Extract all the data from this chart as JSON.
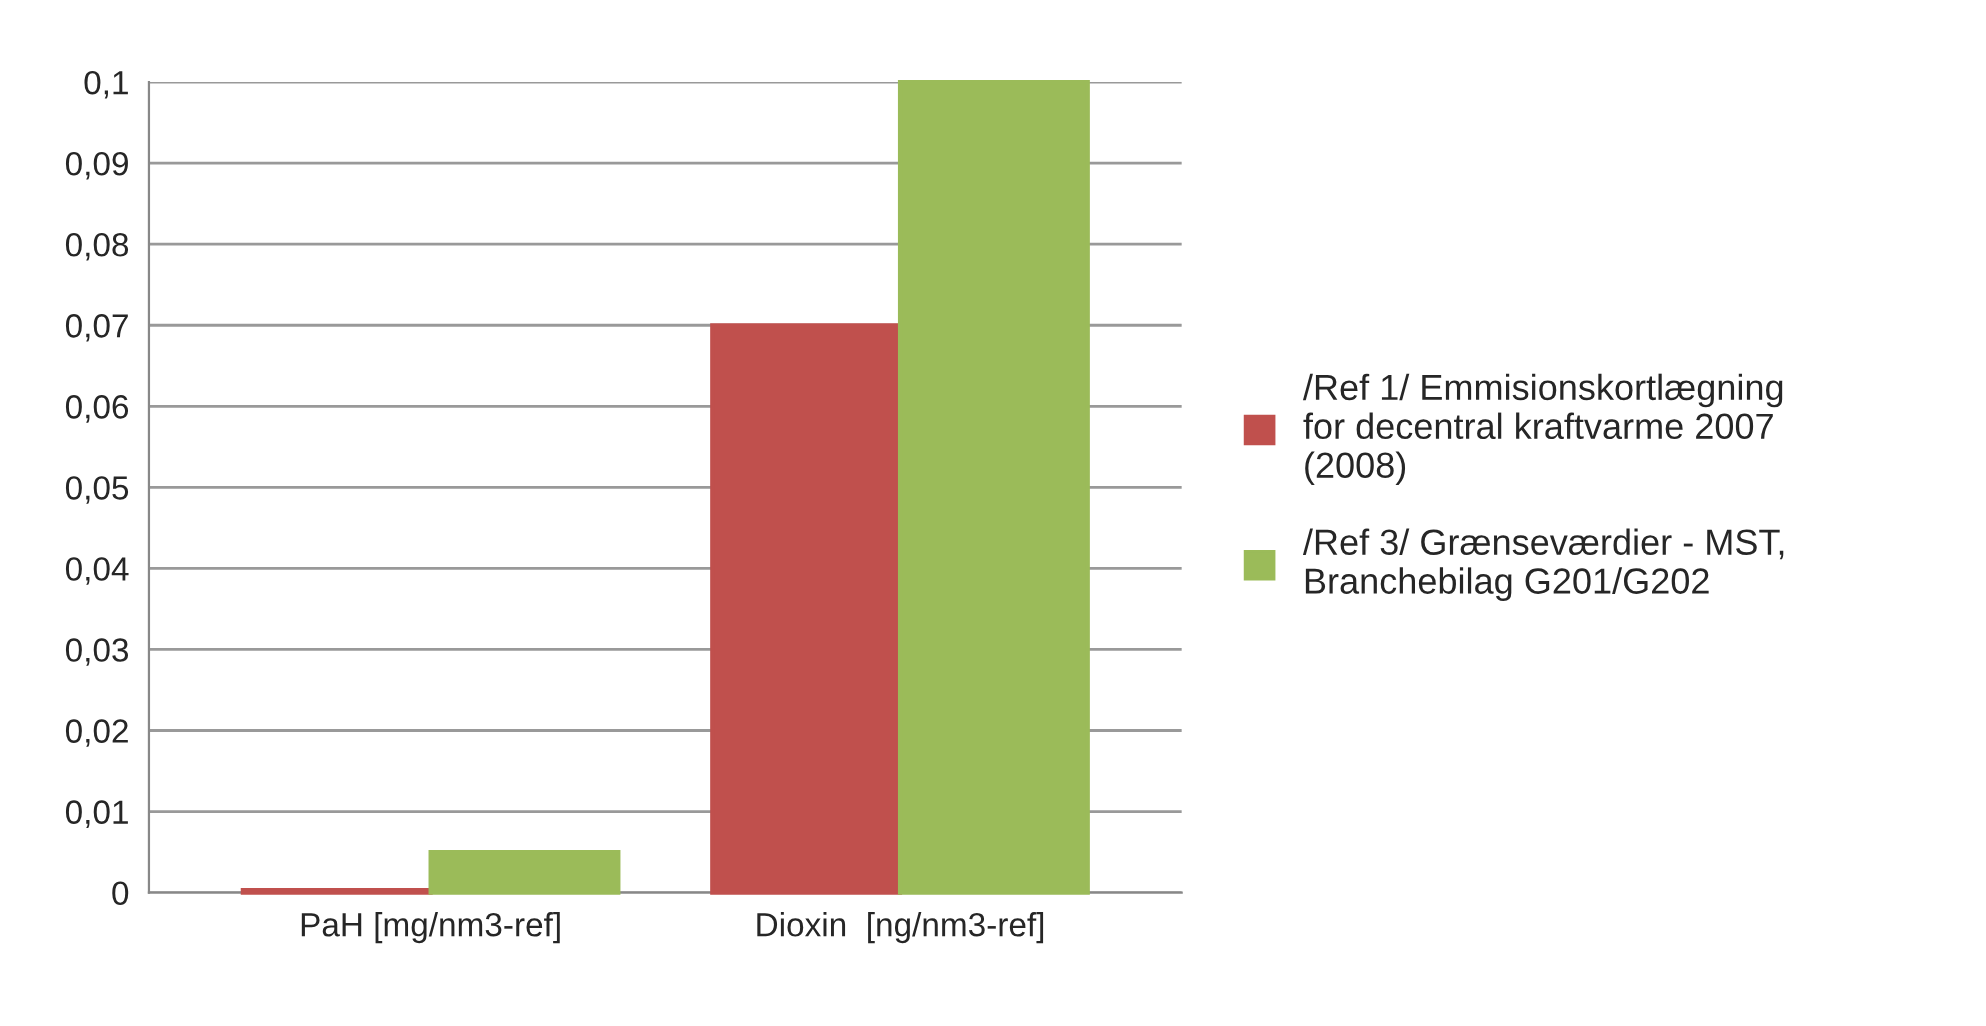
{
  "chart_data": {
    "type": "bar",
    "categories": [
      "PaH [mg/nm3-ref]",
      "Dioxin  [ng/nm3-ref]"
    ],
    "series": [
      {
        "name": "/Ref 1/ Emmisionskortlægning\nfor decentral kraftvarme 2007\n(2008)",
        "color": "#c0504d",
        "values": [
          0.0003,
          0.07
        ]
      },
      {
        "name": "/Ref 3/ Grænseværdier - MST,\nBranchebilag G201/G202",
        "color": "#9bbb59",
        "values": [
          0.005,
          0.1
        ]
      }
    ],
    "ylim": [
      0,
      0.1
    ],
    "yticks": [
      {
        "value": 0,
        "label": "0"
      },
      {
        "value": 0.01,
        "label": "0,01"
      },
      {
        "value": 0.02,
        "label": "0,02"
      },
      {
        "value": 0.03,
        "label": "0,03"
      },
      {
        "value": 0.04,
        "label": "0,04"
      },
      {
        "value": 0.05,
        "label": "0,05"
      },
      {
        "value": 0.06,
        "label": "0,06"
      },
      {
        "value": 0.07,
        "label": "0,07"
      },
      {
        "value": 0.08,
        "label": "0,08"
      },
      {
        "value": 0.09,
        "label": "0,09"
      },
      {
        "value": 0.1,
        "label": "0,1"
      }
    ],
    "grid": "y",
    "legend": "right"
  }
}
